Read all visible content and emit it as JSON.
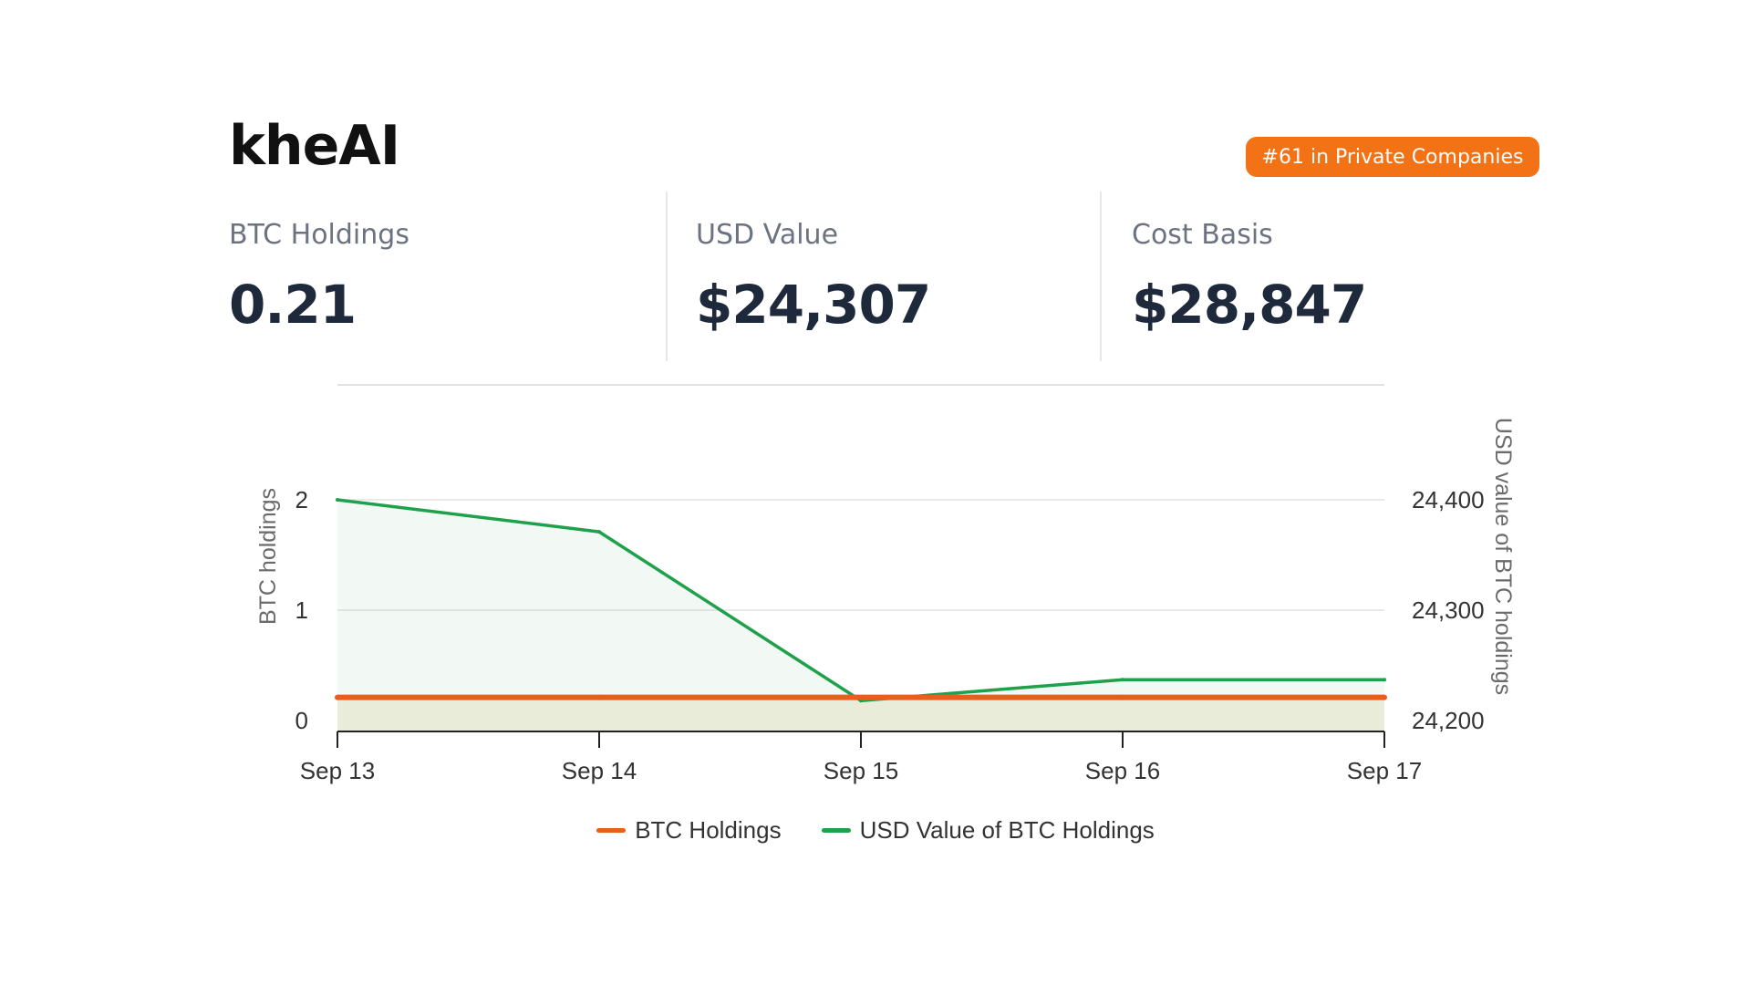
{
  "company": {
    "name": "kheAI",
    "rank_badge": "#61 in Private Companies"
  },
  "stats": [
    {
      "label": "BTC Holdings",
      "value": "0.21"
    },
    {
      "label": "USD Value",
      "value": "$24,307"
    },
    {
      "label": "Cost Basis",
      "value": "$28,847"
    }
  ],
  "colors": {
    "btc": "#e4601b",
    "usd": "#1fa04b",
    "badge": "#f47216"
  },
  "chart_data": {
    "type": "line",
    "categories": [
      "Sep 13",
      "Sep 14",
      "Sep 15",
      "Sep 16",
      "Sep 17"
    ],
    "series": [
      {
        "name": "BTC Holdings",
        "axis": "left",
        "values": [
          0.21,
          0.21,
          0.21,
          0.21,
          0.21
        ]
      },
      {
        "name": "USD Value of BTC Holdings",
        "axis": "right",
        "values": [
          24400,
          24371,
          24218,
          24237,
          24237
        ]
      }
    ],
    "y_left": {
      "label": "BTC holdings",
      "ticks": [
        0,
        1,
        2
      ],
      "tick_labels": [
        "0",
        "1",
        "2"
      ],
      "range": [
        0,
        2
      ]
    },
    "y_right": {
      "label": "USD value of BTC holdings",
      "ticks": [
        24200,
        24300,
        24400
      ],
      "tick_labels": [
        "24,200",
        "24,300",
        "24,400"
      ],
      "range": [
        24200,
        24400
      ]
    },
    "grid": true,
    "legend_position": "bottom"
  }
}
